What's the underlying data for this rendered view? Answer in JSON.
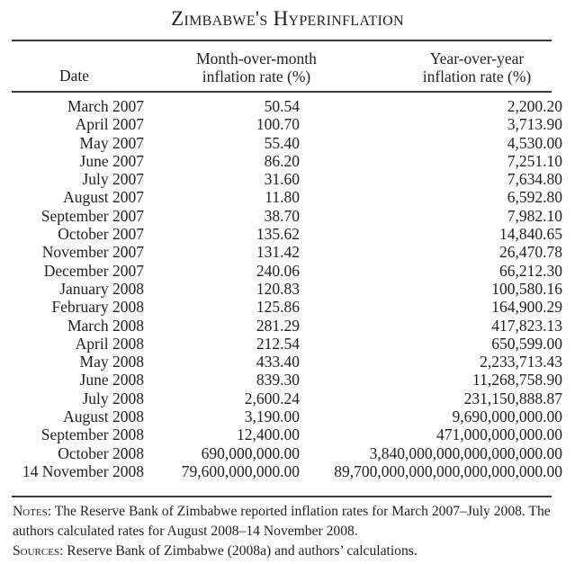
{
  "title": "Zimbabwe's Hyperinflation",
  "columns": {
    "date": "Date",
    "mom": [
      "Month-over-month",
      "inflation rate (%)"
    ],
    "yoy": [
      "Year-over-year",
      "inflation rate (%)"
    ]
  },
  "rows": [
    {
      "date": "March 2007",
      "mom": "50.54",
      "yoy": "2,200.20"
    },
    {
      "date": "April 2007",
      "mom": "100.70",
      "yoy": "3,713.90"
    },
    {
      "date": "May 2007",
      "mom": "55.40",
      "yoy": "4,530.00"
    },
    {
      "date": "June 2007",
      "mom": "86.20",
      "yoy": "7,251.10"
    },
    {
      "date": "July 2007",
      "mom": "31.60",
      "yoy": "7,634.80"
    },
    {
      "date": "August 2007",
      "mom": "11.80",
      "yoy": "6,592.80"
    },
    {
      "date": "September 2007",
      "mom": "38.70",
      "yoy": "7,982.10"
    },
    {
      "date": "October 2007",
      "mom": "135.62",
      "yoy": "14,840.65"
    },
    {
      "date": "November 2007",
      "mom": "131.42",
      "yoy": "26,470.78"
    },
    {
      "date": "December 2007",
      "mom": "240.06",
      "yoy": "66,212.30"
    },
    {
      "date": "January 2008",
      "mom": "120.83",
      "yoy": "100,580.16"
    },
    {
      "date": "February 2008",
      "mom": "125.86",
      "yoy": "164,900.29"
    },
    {
      "date": "March 2008",
      "mom": "281.29",
      "yoy": "417,823.13"
    },
    {
      "date": "April 2008",
      "mom": "212.54",
      "yoy": "650,599.00"
    },
    {
      "date": "May 2008",
      "mom": "433.40",
      "yoy": "2,233,713.43"
    },
    {
      "date": "June 2008",
      "mom": "839.30",
      "yoy": "11,268,758.90"
    },
    {
      "date": "July 2008",
      "mom": "2,600.24",
      "yoy": "231,150,888.87"
    },
    {
      "date": "August 2008",
      "mom": "3,190.00",
      "yoy": "9,690,000,000.00"
    },
    {
      "date": "September 2008",
      "mom": "12,400.00",
      "yoy": "471,000,000,000.00"
    },
    {
      "date": "October 2008",
      "mom": "690,000,000.00",
      "yoy": "3,840,000,000,000,000,000.00"
    },
    {
      "date": "14 November 2008",
      "mom": "79,600,000,000.00",
      "yoy": "89,700,000,000,000,000,000,000.00"
    }
  ],
  "notes": {
    "notes_label": "Notes:",
    "notes_text": " The Reserve Bank of Zimbabwe reported inflation rates for March 2007–July 2008. The authors calculated rates for August 2008–14 November 2008.",
    "sources_label": "Sources:",
    "sources_text": " Reserve Bank of Zimbabwe (2008a) and authors’ calculations."
  }
}
